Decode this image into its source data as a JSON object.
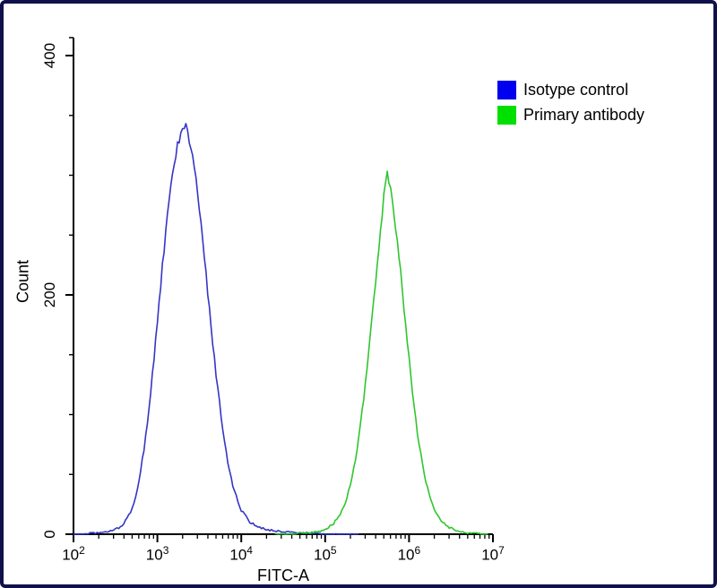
{
  "figure": {
    "border_color": "#10104a",
    "background": "#ffffff",
    "axis_color": "#000000"
  },
  "chart_data": {
    "type": "line",
    "title": "",
    "xlabel": "FITC-A",
    "ylabel": "Count",
    "x_scale": "log",
    "x_range_log10": [
      2,
      7
    ],
    "x_tick_exponents": [
      2,
      3,
      4,
      5,
      6,
      7
    ],
    "ylim": [
      0,
      415
    ],
    "y_ticks": [
      0,
      200,
      400
    ],
    "y_minor_step": 50,
    "grid": false,
    "legend_position": "top-right",
    "series": [
      {
        "name": "Isotype control",
        "color": "#3535c5",
        "legend_color": "#0000f0",
        "peak_x": 2000,
        "peak_count": 340,
        "points": [
          [
            2.0,
            0
          ],
          [
            2.1,
            0
          ],
          [
            2.2,
            1
          ],
          [
            2.3,
            1
          ],
          [
            2.4,
            2
          ],
          [
            2.5,
            4
          ],
          [
            2.55,
            6
          ],
          [
            2.6,
            9
          ],
          [
            2.65,
            14
          ],
          [
            2.7,
            22
          ],
          [
            2.75,
            34
          ],
          [
            2.8,
            52
          ],
          [
            2.85,
            76
          ],
          [
            2.9,
            105
          ],
          [
            2.95,
            140
          ],
          [
            3.0,
            178
          ],
          [
            3.05,
            216
          ],
          [
            3.1,
            252
          ],
          [
            3.15,
            284
          ],
          [
            3.2,
            310
          ],
          [
            3.25,
            328
          ],
          [
            3.3,
            338
          ],
          [
            3.33,
            341
          ],
          [
            3.36,
            336
          ],
          [
            3.4,
            324
          ],
          [
            3.45,
            302
          ],
          [
            3.5,
            272
          ],
          [
            3.55,
            238
          ],
          [
            3.6,
            202
          ],
          [
            3.65,
            167
          ],
          [
            3.7,
            134
          ],
          [
            3.75,
            104
          ],
          [
            3.8,
            78
          ],
          [
            3.85,
            57
          ],
          [
            3.9,
            41
          ],
          [
            3.95,
            29
          ],
          [
            4.0,
            20
          ],
          [
            4.1,
            10
          ],
          [
            4.2,
            6
          ],
          [
            4.3,
            4
          ],
          [
            4.4,
            3
          ],
          [
            4.5,
            2
          ],
          [
            4.6,
            2
          ],
          [
            4.7,
            1
          ],
          [
            4.8,
            1
          ],
          [
            4.9,
            1
          ],
          [
            5.0,
            0
          ],
          [
            5.2,
            0
          ],
          [
            5.4,
            0
          ]
        ]
      },
      {
        "name": "Primary antibody",
        "color": "#30c530",
        "legend_color": "#00e000",
        "peak_x": 550000,
        "peak_count": 300,
        "points": [
          [
            4.4,
            0
          ],
          [
            4.6,
            0
          ],
          [
            4.7,
            1
          ],
          [
            4.8,
            1
          ],
          [
            4.9,
            2
          ],
          [
            5.0,
            4
          ],
          [
            5.05,
            6
          ],
          [
            5.1,
            9
          ],
          [
            5.15,
            13
          ],
          [
            5.2,
            19
          ],
          [
            5.25,
            28
          ],
          [
            5.3,
            41
          ],
          [
            5.35,
            58
          ],
          [
            5.4,
            80
          ],
          [
            5.45,
            107
          ],
          [
            5.5,
            139
          ],
          [
            5.55,
            174
          ],
          [
            5.6,
            210
          ],
          [
            5.65,
            245
          ],
          [
            5.68,
            268
          ],
          [
            5.7,
            285
          ],
          [
            5.72,
            296
          ],
          [
            5.74,
            301
          ],
          [
            5.76,
            297
          ],
          [
            5.78,
            290
          ],
          [
            5.8,
            280
          ],
          [
            5.85,
            252
          ],
          [
            5.9,
            218
          ],
          [
            5.95,
            182
          ],
          [
            6.0,
            146
          ],
          [
            6.05,
            113
          ],
          [
            6.1,
            85
          ],
          [
            6.15,
            62
          ],
          [
            6.2,
            44
          ],
          [
            6.25,
            31
          ],
          [
            6.3,
            21
          ],
          [
            6.35,
            14
          ],
          [
            6.4,
            10
          ],
          [
            6.45,
            7
          ],
          [
            6.5,
            5
          ],
          [
            6.55,
            3
          ],
          [
            6.6,
            2
          ],
          [
            6.7,
            1
          ],
          [
            6.8,
            1
          ],
          [
            6.9,
            0
          ],
          [
            6.95,
            0
          ]
        ]
      }
    ]
  }
}
